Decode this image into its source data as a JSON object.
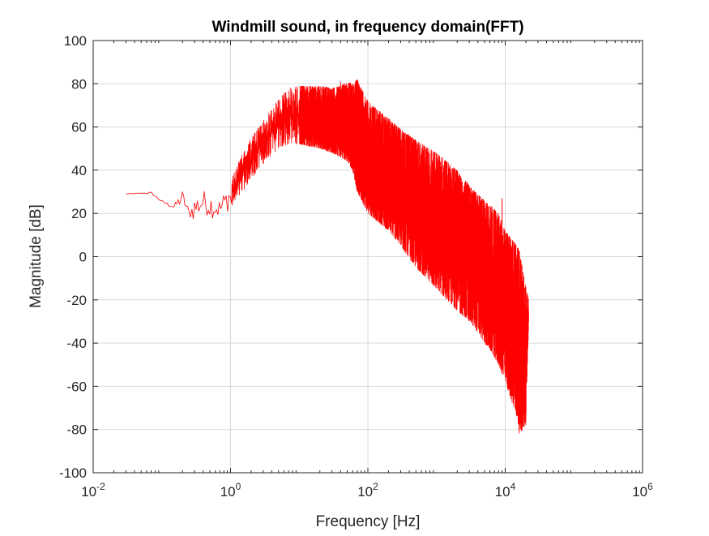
{
  "chart_data": {
    "type": "line",
    "title": "Windmill sound, in frequency domain(FFT)",
    "xlabel": "Frequency [Hz]",
    "ylabel": "Magnitude [dB]",
    "x_scale": "log",
    "xlim": [
      0.01,
      1000000
    ],
    "ylim": [
      -100,
      100
    ],
    "x_ticks": [
      {
        "base": "10",
        "exp": "-2",
        "value": 0.01
      },
      {
        "base": "10",
        "exp": "0",
        "value": 1
      },
      {
        "base": "10",
        "exp": "2",
        "value": 100
      },
      {
        "base": "10",
        "exp": "4",
        "value": 10000
      },
      {
        "base": "10",
        "exp": "6",
        "value": 1000000
      }
    ],
    "y_ticks": [
      "100",
      "80",
      "60",
      "40",
      "20",
      "0",
      "-20",
      "-40",
      "-60",
      "-80",
      "-100"
    ],
    "y_tick_values": [
      100,
      80,
      60,
      40,
      20,
      0,
      -20,
      -40,
      -60,
      -80,
      -100
    ],
    "grid": true,
    "series": [
      {
        "color": "#ff0000",
        "upper_envelope": {
          "x": [
            0.03,
            0.07,
            0.1,
            0.15,
            0.2,
            0.25,
            0.3,
            0.4,
            0.5,
            0.7,
            1,
            1.5,
            2,
            3,
            5,
            7,
            10,
            20,
            30,
            40,
            50,
            60,
            70,
            100,
            200,
            300,
            500,
            1000,
            2000,
            3000,
            4000,
            5000,
            6000,
            8000,
            10000,
            15000,
            16000,
            20000,
            22000
          ],
          "y": [
            29,
            30,
            26,
            24,
            31,
            22,
            29,
            31,
            30,
            27,
            35,
            48,
            55,
            63,
            73,
            78,
            79,
            79,
            78,
            79,
            81,
            80,
            82,
            72,
            64,
            59,
            54,
            48,
            40,
            33,
            29,
            26,
            24,
            20,
            12,
            5,
            3,
            -14,
            -20
          ]
        },
        "lower_envelope": {
          "x": [
            0.03,
            0.07,
            0.1,
            0.15,
            0.2,
            0.25,
            0.3,
            0.4,
            0.5,
            0.7,
            1,
            1.5,
            2,
            3,
            5,
            7,
            10,
            20,
            30,
            40,
            50,
            60,
            70,
            100,
            200,
            300,
            500,
            1000,
            2000,
            3000,
            4000,
            5000,
            6000,
            8000,
            10000,
            15000,
            16000,
            20000,
            22000
          ],
          "y": [
            29,
            29,
            25,
            22,
            24,
            18,
            16,
            20,
            18,
            17,
            22,
            30,
            36,
            43,
            50,
            52,
            52,
            50,
            48,
            46,
            44,
            40,
            30,
            20,
            12,
            5,
            -5,
            -15,
            -25,
            -30,
            -35,
            -40,
            -43,
            -50,
            -58,
            -75,
            -82,
            -78,
            -30
          ]
        },
        "peaks": [
          {
            "x": 40,
            "y": 81
          },
          {
            "x": 70,
            "y": 82
          },
          {
            "x": 7000,
            "y": 22
          },
          {
            "x": 9000,
            "y": 27
          }
        ]
      }
    ]
  }
}
